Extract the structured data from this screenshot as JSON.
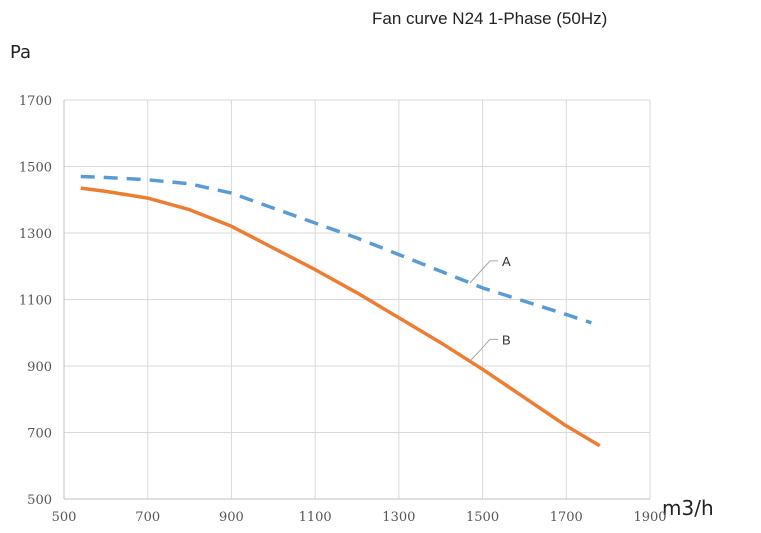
{
  "chart_data": {
    "type": "line",
    "title": "Fan curve N24 1-Phase (50Hz)",
    "ylabel": "Pa",
    "xlabel": "m3/h",
    "xlim": [
      500,
      1900
    ],
    "ylim": [
      500,
      1700
    ],
    "x_ticks": [
      "500",
      "700",
      "900",
      "1100",
      "1300",
      "1500",
      "1700",
      "1900"
    ],
    "y_ticks": [
      "500",
      "700",
      "900",
      "1100",
      "1300",
      "1500",
      "1700"
    ],
    "grid": true,
    "series": [
      {
        "name": "A",
        "style": "dashed",
        "color": "#5b9bd5",
        "x": [
          540,
          600,
          700,
          800,
          900,
          1000,
          1100,
          1200,
          1300,
          1400,
          1500,
          1600,
          1700,
          1760
        ],
        "y": [
          1470,
          1467,
          1460,
          1448,
          1420,
          1375,
          1330,
          1285,
          1235,
          1185,
          1135,
          1095,
          1055,
          1030
        ]
      },
      {
        "name": "B",
        "style": "solid",
        "color": "#ed7d31",
        "x": [
          540,
          600,
          700,
          800,
          900,
          1000,
          1100,
          1200,
          1300,
          1400,
          1500,
          1600,
          1700,
          1780
        ],
        "y": [
          1435,
          1425,
          1405,
          1370,
          1320,
          1255,
          1190,
          1120,
          1045,
          970,
          890,
          805,
          720,
          660
        ]
      }
    ]
  }
}
